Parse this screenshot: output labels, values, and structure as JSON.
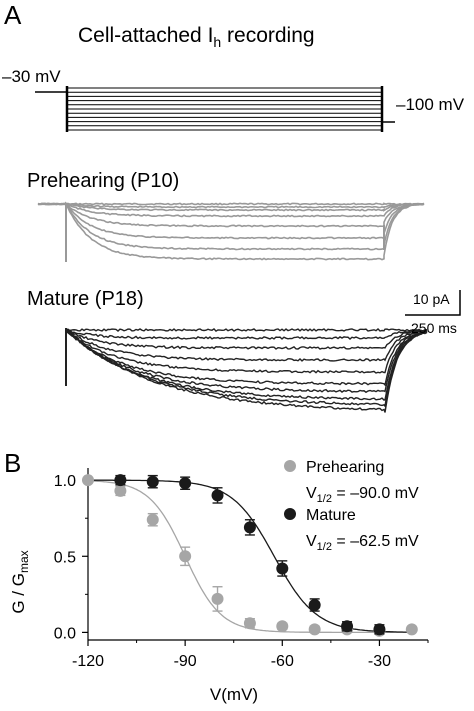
{
  "panel_a": {
    "label": "A",
    "title_main": "Cell-attached I",
    "title_sub": "h",
    "title_tail": " recording",
    "hold_label": "–30 mV",
    "step_label": "–100 mV",
    "prehearing_label": "Prehearing (P10)",
    "mature_label": "Mature (P18)",
    "scale_current": "10 pA",
    "scale_time": "250 ms",
    "colors": {
      "prehearing": "#999999",
      "mature": "#222222",
      "protocol": "#000000"
    }
  },
  "panel_b": {
    "label": "B",
    "ylabel_main": "G / G",
    "ylabel_sub": "max",
    "xlabel": "V(mV)",
    "legend": {
      "prehearing": "Prehearing",
      "prehearing_v": "V",
      "prehearing_vsub": "1/2",
      "prehearing_vval": " = –90.0 mV",
      "mature": "Mature",
      "mature_v": "V",
      "mature_vsub": "1/2",
      "mature_vval": " = –62.5 mV"
    }
  },
  "chart_data": {
    "type": "scatter",
    "xlabel": "V(mV)",
    "ylabel": "G / Gmax",
    "xlim": [
      -120,
      -15
    ],
    "ylim": [
      -0.05,
      1.08
    ],
    "xticks": [
      -120,
      -90,
      -60,
      -30
    ],
    "xtick_labels": [
      "-120",
      "-90",
      "-60",
      "-30"
    ],
    "yticks": [
      0.0,
      0.5,
      1.0
    ],
    "ytick_labels": [
      "0.0",
      "0.5",
      "1.0"
    ],
    "grid": false,
    "legend_position": "top-right",
    "series": [
      {
        "name": "Prehearing",
        "color": "#a6a6a6",
        "v_half": -90.0,
        "slope": 5.5,
        "x": [
          -120,
          -110,
          -100,
          -90,
          -80,
          -70,
          -60,
          -50,
          -40,
          -30,
          -20
        ],
        "y": [
          1.0,
          0.93,
          0.74,
          0.5,
          0.22,
          0.06,
          0.04,
          0.02,
          0.02,
          0.01,
          0.02
        ],
        "err": [
          0.0,
          0.03,
          0.04,
          0.06,
          0.08,
          0.03,
          0.02,
          0.02,
          0.02,
          0.02,
          0.0
        ]
      },
      {
        "name": "Mature",
        "color": "#1a1a1a",
        "v_half": -62.5,
        "slope": 6.5,
        "x": [
          -110,
          -100,
          -90,
          -80,
          -70,
          -60,
          -50,
          -40,
          -30
        ],
        "y": [
          1.0,
          0.99,
          0.98,
          0.9,
          0.69,
          0.42,
          0.18,
          0.04,
          0.02
        ],
        "err": [
          0.03,
          0.04,
          0.04,
          0.05,
          0.05,
          0.05,
          0.04,
          0.03,
          0.03
        ]
      }
    ]
  }
}
